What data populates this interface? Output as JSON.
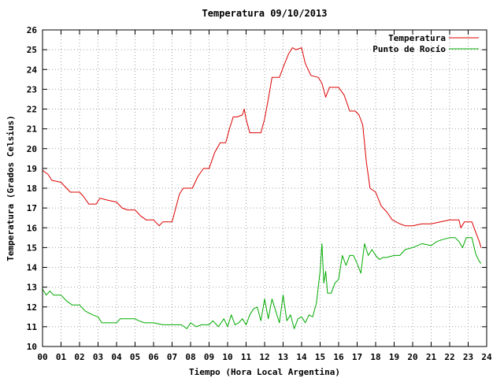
{
  "chart_data": {
    "type": "line",
    "title": "Temperatura 09/10/2013",
    "xlabel": "Tiempo (Hora Local Argentina)",
    "ylabel": "Temperatura (Grados Celsius)",
    "xlim": [
      0,
      24
    ],
    "ylim": [
      10,
      26
    ],
    "grid": true,
    "legend_position": "top-right",
    "x_ticks": [
      "00",
      "01",
      "02",
      "03",
      "04",
      "05",
      "06",
      "07",
      "08",
      "09",
      "10",
      "11",
      "12",
      "13",
      "14",
      "15",
      "16",
      "17",
      "18",
      "19",
      "20",
      "21",
      "22",
      "23",
      "24"
    ],
    "y_ticks": [
      "10",
      "11",
      "12",
      "13",
      "14",
      "15",
      "16",
      "17",
      "18",
      "19",
      "20",
      "21",
      "22",
      "23",
      "24",
      "25",
      "26"
    ],
    "series": [
      {
        "name": "Temperatura",
        "color": "#dd0000",
        "points": [
          [
            0.0,
            18.9
          ],
          [
            0.3,
            18.7
          ],
          [
            0.5,
            18.4
          ],
          [
            1.0,
            18.3
          ],
          [
            1.3,
            18.0
          ],
          [
            1.5,
            17.8
          ],
          [
            2.0,
            17.8
          ],
          [
            2.2,
            17.6
          ],
          [
            2.5,
            17.2
          ],
          [
            2.9,
            17.2
          ],
          [
            3.1,
            17.5
          ],
          [
            3.5,
            17.4
          ],
          [
            4.0,
            17.3
          ],
          [
            4.3,
            17.0
          ],
          [
            4.6,
            16.9
          ],
          [
            5.0,
            16.9
          ],
          [
            5.3,
            16.6
          ],
          [
            5.6,
            16.4
          ],
          [
            6.0,
            16.4
          ],
          [
            6.3,
            16.1
          ],
          [
            6.5,
            16.3
          ],
          [
            7.0,
            16.3
          ],
          [
            7.2,
            17.0
          ],
          [
            7.4,
            17.7
          ],
          [
            7.6,
            18.0
          ],
          [
            8.1,
            18.0
          ],
          [
            8.4,
            18.6
          ],
          [
            8.7,
            19.0
          ],
          [
            9.0,
            19.0
          ],
          [
            9.3,
            19.8
          ],
          [
            9.6,
            20.3
          ],
          [
            9.9,
            20.3
          ],
          [
            10.1,
            21.0
          ],
          [
            10.3,
            21.6
          ],
          [
            10.5,
            21.6
          ],
          [
            10.8,
            21.7
          ],
          [
            10.9,
            22.0
          ],
          [
            11.0,
            21.5
          ],
          [
            11.2,
            20.8
          ],
          [
            11.5,
            20.8
          ],
          [
            11.8,
            20.8
          ],
          [
            12.0,
            21.5
          ],
          [
            12.2,
            22.5
          ],
          [
            12.4,
            23.6
          ],
          [
            12.8,
            23.6
          ],
          [
            13.0,
            24.1
          ],
          [
            13.3,
            24.8
          ],
          [
            13.5,
            25.1
          ],
          [
            13.7,
            25.0
          ],
          [
            14.0,
            25.1
          ],
          [
            14.2,
            24.3
          ],
          [
            14.5,
            23.7
          ],
          [
            14.9,
            23.6
          ],
          [
            15.1,
            23.3
          ],
          [
            15.3,
            22.6
          ],
          [
            15.5,
            23.1
          ],
          [
            16.0,
            23.1
          ],
          [
            16.3,
            22.7
          ],
          [
            16.6,
            21.9
          ],
          [
            16.9,
            21.9
          ],
          [
            17.1,
            21.7
          ],
          [
            17.3,
            21.2
          ],
          [
            17.5,
            19.3
          ],
          [
            17.7,
            18.0
          ],
          [
            18.0,
            17.8
          ],
          [
            18.3,
            17.1
          ],
          [
            18.6,
            16.8
          ],
          [
            18.9,
            16.4
          ],
          [
            19.3,
            16.2
          ],
          [
            19.6,
            16.1
          ],
          [
            20.0,
            16.1
          ],
          [
            20.5,
            16.2
          ],
          [
            21.0,
            16.2
          ],
          [
            21.5,
            16.3
          ],
          [
            22.0,
            16.4
          ],
          [
            22.5,
            16.4
          ],
          [
            22.6,
            16.0
          ],
          [
            22.8,
            16.3
          ],
          [
            23.2,
            16.3
          ],
          [
            23.4,
            15.8
          ],
          [
            23.6,
            15.3
          ],
          [
            23.7,
            15.0
          ]
        ]
      },
      {
        "name": "Punto de Rocío",
        "color": "#00aa00",
        "points": [
          [
            0.0,
            12.9
          ],
          [
            0.2,
            12.6
          ],
          [
            0.4,
            12.8
          ],
          [
            0.6,
            12.6
          ],
          [
            1.0,
            12.6
          ],
          [
            1.3,
            12.3
          ],
          [
            1.6,
            12.1
          ],
          [
            2.0,
            12.1
          ],
          [
            2.3,
            11.8
          ],
          [
            2.7,
            11.6
          ],
          [
            3.0,
            11.5
          ],
          [
            3.2,
            11.2
          ],
          [
            3.5,
            11.2
          ],
          [
            4.0,
            11.2
          ],
          [
            4.2,
            11.4
          ],
          [
            4.6,
            11.4
          ],
          [
            5.0,
            11.4
          ],
          [
            5.2,
            11.3
          ],
          [
            5.5,
            11.2
          ],
          [
            6.0,
            11.2
          ],
          [
            6.5,
            11.1
          ],
          [
            7.0,
            11.1
          ],
          [
            7.5,
            11.1
          ],
          [
            7.8,
            10.9
          ],
          [
            8.0,
            11.2
          ],
          [
            8.3,
            11.0
          ],
          [
            8.6,
            11.1
          ],
          [
            9.0,
            11.1
          ],
          [
            9.2,
            11.3
          ],
          [
            9.5,
            11.0
          ],
          [
            9.8,
            11.4
          ],
          [
            10.0,
            11.0
          ],
          [
            10.2,
            11.6
          ],
          [
            10.4,
            11.1
          ],
          [
            10.6,
            11.2
          ],
          [
            10.8,
            11.4
          ],
          [
            11.0,
            11.1
          ],
          [
            11.2,
            11.6
          ],
          [
            11.4,
            11.9
          ],
          [
            11.6,
            12.0
          ],
          [
            11.8,
            11.3
          ],
          [
            12.0,
            12.4
          ],
          [
            12.2,
            11.4
          ],
          [
            12.4,
            12.4
          ],
          [
            12.6,
            11.8
          ],
          [
            12.8,
            11.2
          ],
          [
            13.0,
            12.6
          ],
          [
            13.2,
            11.3
          ],
          [
            13.4,
            11.6
          ],
          [
            13.6,
            10.9
          ],
          [
            13.8,
            11.4
          ],
          [
            14.0,
            11.5
          ],
          [
            14.2,
            11.2
          ],
          [
            14.4,
            11.6
          ],
          [
            14.6,
            11.5
          ],
          [
            14.8,
            12.2
          ],
          [
            15.0,
            13.8
          ],
          [
            15.1,
            15.2
          ],
          [
            15.2,
            13.2
          ],
          [
            15.3,
            13.8
          ],
          [
            15.4,
            12.7
          ],
          [
            15.6,
            12.7
          ],
          [
            15.8,
            13.2
          ],
          [
            16.0,
            13.4
          ],
          [
            16.2,
            14.6
          ],
          [
            16.4,
            14.1
          ],
          [
            16.6,
            14.6
          ],
          [
            16.8,
            14.6
          ],
          [
            17.0,
            14.2
          ],
          [
            17.2,
            13.7
          ],
          [
            17.4,
            15.2
          ],
          [
            17.6,
            14.6
          ],
          [
            17.8,
            14.9
          ],
          [
            18.0,
            14.6
          ],
          [
            18.2,
            14.4
          ],
          [
            18.4,
            14.5
          ],
          [
            18.6,
            14.5
          ],
          [
            19.0,
            14.6
          ],
          [
            19.3,
            14.6
          ],
          [
            19.6,
            14.9
          ],
          [
            20.0,
            15.0
          ],
          [
            20.5,
            15.2
          ],
          [
            21.0,
            15.1
          ],
          [
            21.3,
            15.3
          ],
          [
            21.6,
            15.4
          ],
          [
            22.0,
            15.5
          ],
          [
            22.3,
            15.5
          ],
          [
            22.5,
            15.3
          ],
          [
            22.7,
            15.0
          ],
          [
            22.9,
            15.5
          ],
          [
            23.2,
            15.5
          ],
          [
            23.4,
            14.7
          ],
          [
            23.6,
            14.3
          ],
          [
            23.7,
            14.2
          ]
        ]
      }
    ]
  }
}
